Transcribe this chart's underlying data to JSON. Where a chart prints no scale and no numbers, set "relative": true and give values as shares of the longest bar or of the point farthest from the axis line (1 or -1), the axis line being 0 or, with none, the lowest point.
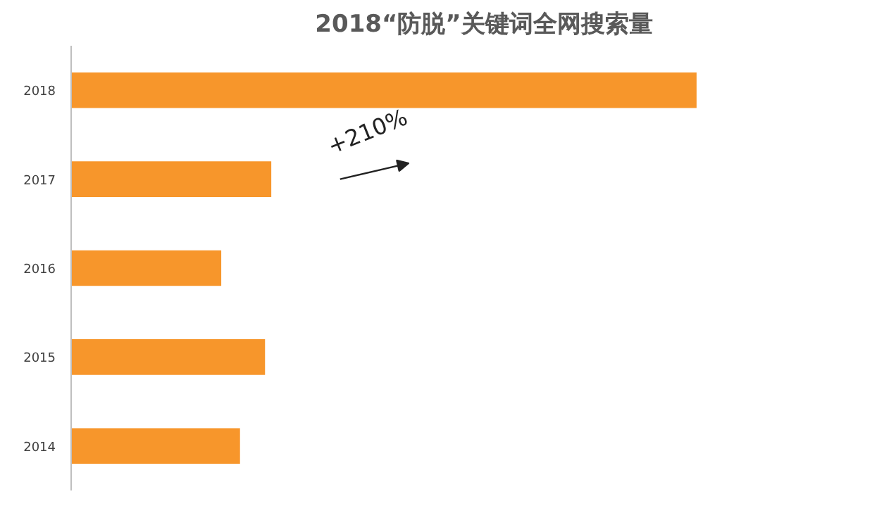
{
  "chart_data": {
    "type": "bar",
    "orientation": "horizontal",
    "relative": true,
    "title": "2018“防脱”关键词全网搜索量",
    "categories": [
      "2018",
      "2017",
      "2016",
      "2015",
      "2014"
    ],
    "values": [
      1,
      0.32,
      0.24,
      0.31,
      0.27
    ],
    "color": "#f7962b",
    "annotations": [
      "+210%"
    ],
    "grid": false
  }
}
